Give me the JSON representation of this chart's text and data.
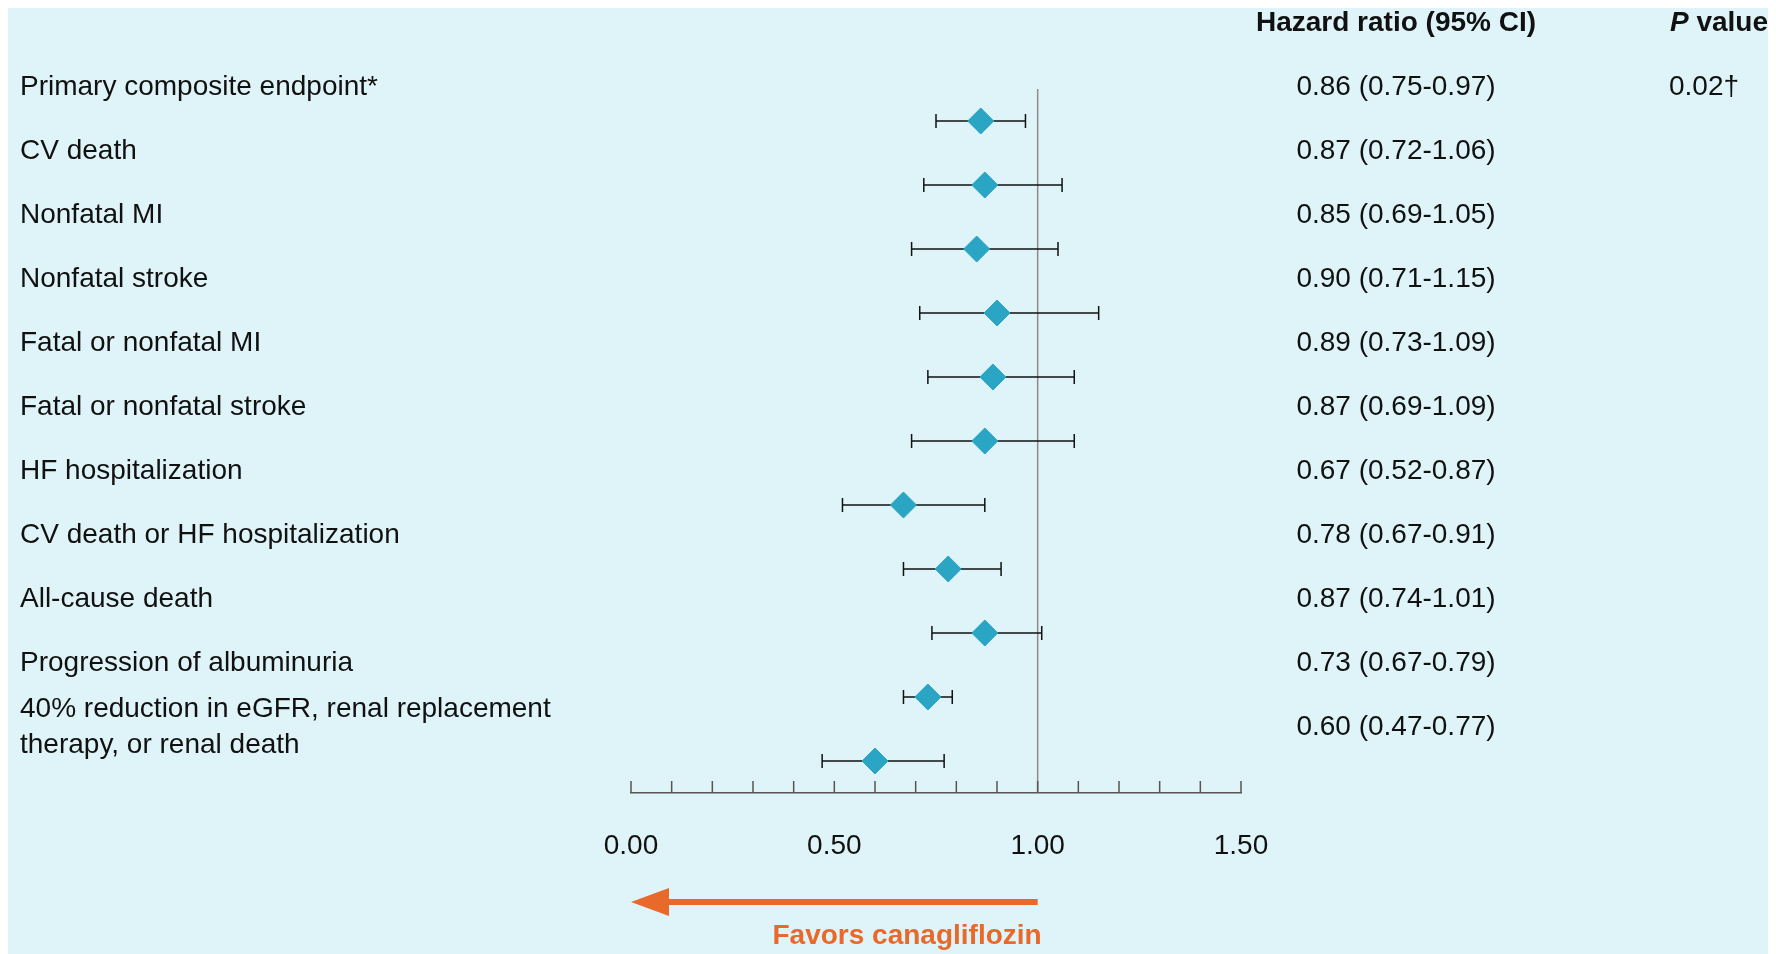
{
  "chart_data": {
    "type": "scatter",
    "orientation": "horizontal",
    "color": "#2ba5c4",
    "marker": "diamond",
    "categories": [
      "Primary composite endpoint*",
      "CV death",
      "Nonfatal MI",
      "Nonfatal stroke",
      "Fatal or nonfatal MI",
      "Fatal or nonfatal stroke",
      "HF hospitalization",
      "CV death or HF hospitalization",
      "All-cause death",
      "Progression of albuminuria",
      "40% reduction in eGFR, renal replacement therapy, or renal death"
    ],
    "values": [
      0.86,
      0.87,
      0.85,
      0.9,
      0.89,
      0.87,
      0.67,
      0.78,
      0.87,
      0.73,
      0.6
    ],
    "errors": [
      [
        0.75,
        0.97
      ],
      [
        0.72,
        1.06
      ],
      [
        0.69,
        1.05
      ],
      [
        0.71,
        1.15
      ],
      [
        0.73,
        1.09
      ],
      [
        0.69,
        1.09
      ],
      [
        0.52,
        0.87
      ],
      [
        0.67,
        0.91
      ],
      [
        0.74,
        1.01
      ],
      [
        0.67,
        0.79
      ],
      [
        0.47,
        0.77
      ]
    ],
    "value_labels": [
      "0.86 (0.75-0.97)",
      "0.87 (0.72-1.06)",
      "0.85 (0.69-1.05)",
      "0.90 (0.71-1.15)",
      "0.89 (0.73-1.09)",
      "0.87 (0.69-1.09)",
      "0.67 (0.52-0.87)",
      "0.78 (0.67-0.91)",
      "0.87 (0.74-1.01)",
      "0.73 (0.67-0.79)",
      "0.60 (0.47-0.77)"
    ],
    "xlim": [
      0,
      1.5
    ],
    "xticks": [
      {
        "value": 0,
        "label": "0.00"
      },
      {
        "value": 0.1,
        "label": null
      },
      {
        "value": 0.2,
        "label": null
      },
      {
        "value": 0.3,
        "label": null
      },
      {
        "value": 0.4,
        "label": null
      },
      {
        "value": 0.5,
        "label": "0.50"
      },
      {
        "value": 0.6,
        "label": null
      },
      {
        "value": 0.7,
        "label": null
      },
      {
        "value": 0.8,
        "label": null
      },
      {
        "value": 0.9,
        "label": null
      },
      {
        "value": 1,
        "label": "1.00"
      },
      {
        "value": 1.1,
        "label": null
      },
      {
        "value": 1.2,
        "label": null
      },
      {
        "value": 1.3,
        "label": null
      },
      {
        "value": 1.4,
        "label": null
      },
      {
        "value": 1.5,
        "label": "1.50"
      }
    ],
    "ref_lines": [
      {
        "axis": "x",
        "value": 1,
        "color": "#8c8c8c"
      }
    ],
    "annotations": [
      "Hazard ratio (95% CI)",
      "P value",
      "Favors canagliflozin",
      "0.02†"
    ],
    "legend": false,
    "grid": false
  }
}
